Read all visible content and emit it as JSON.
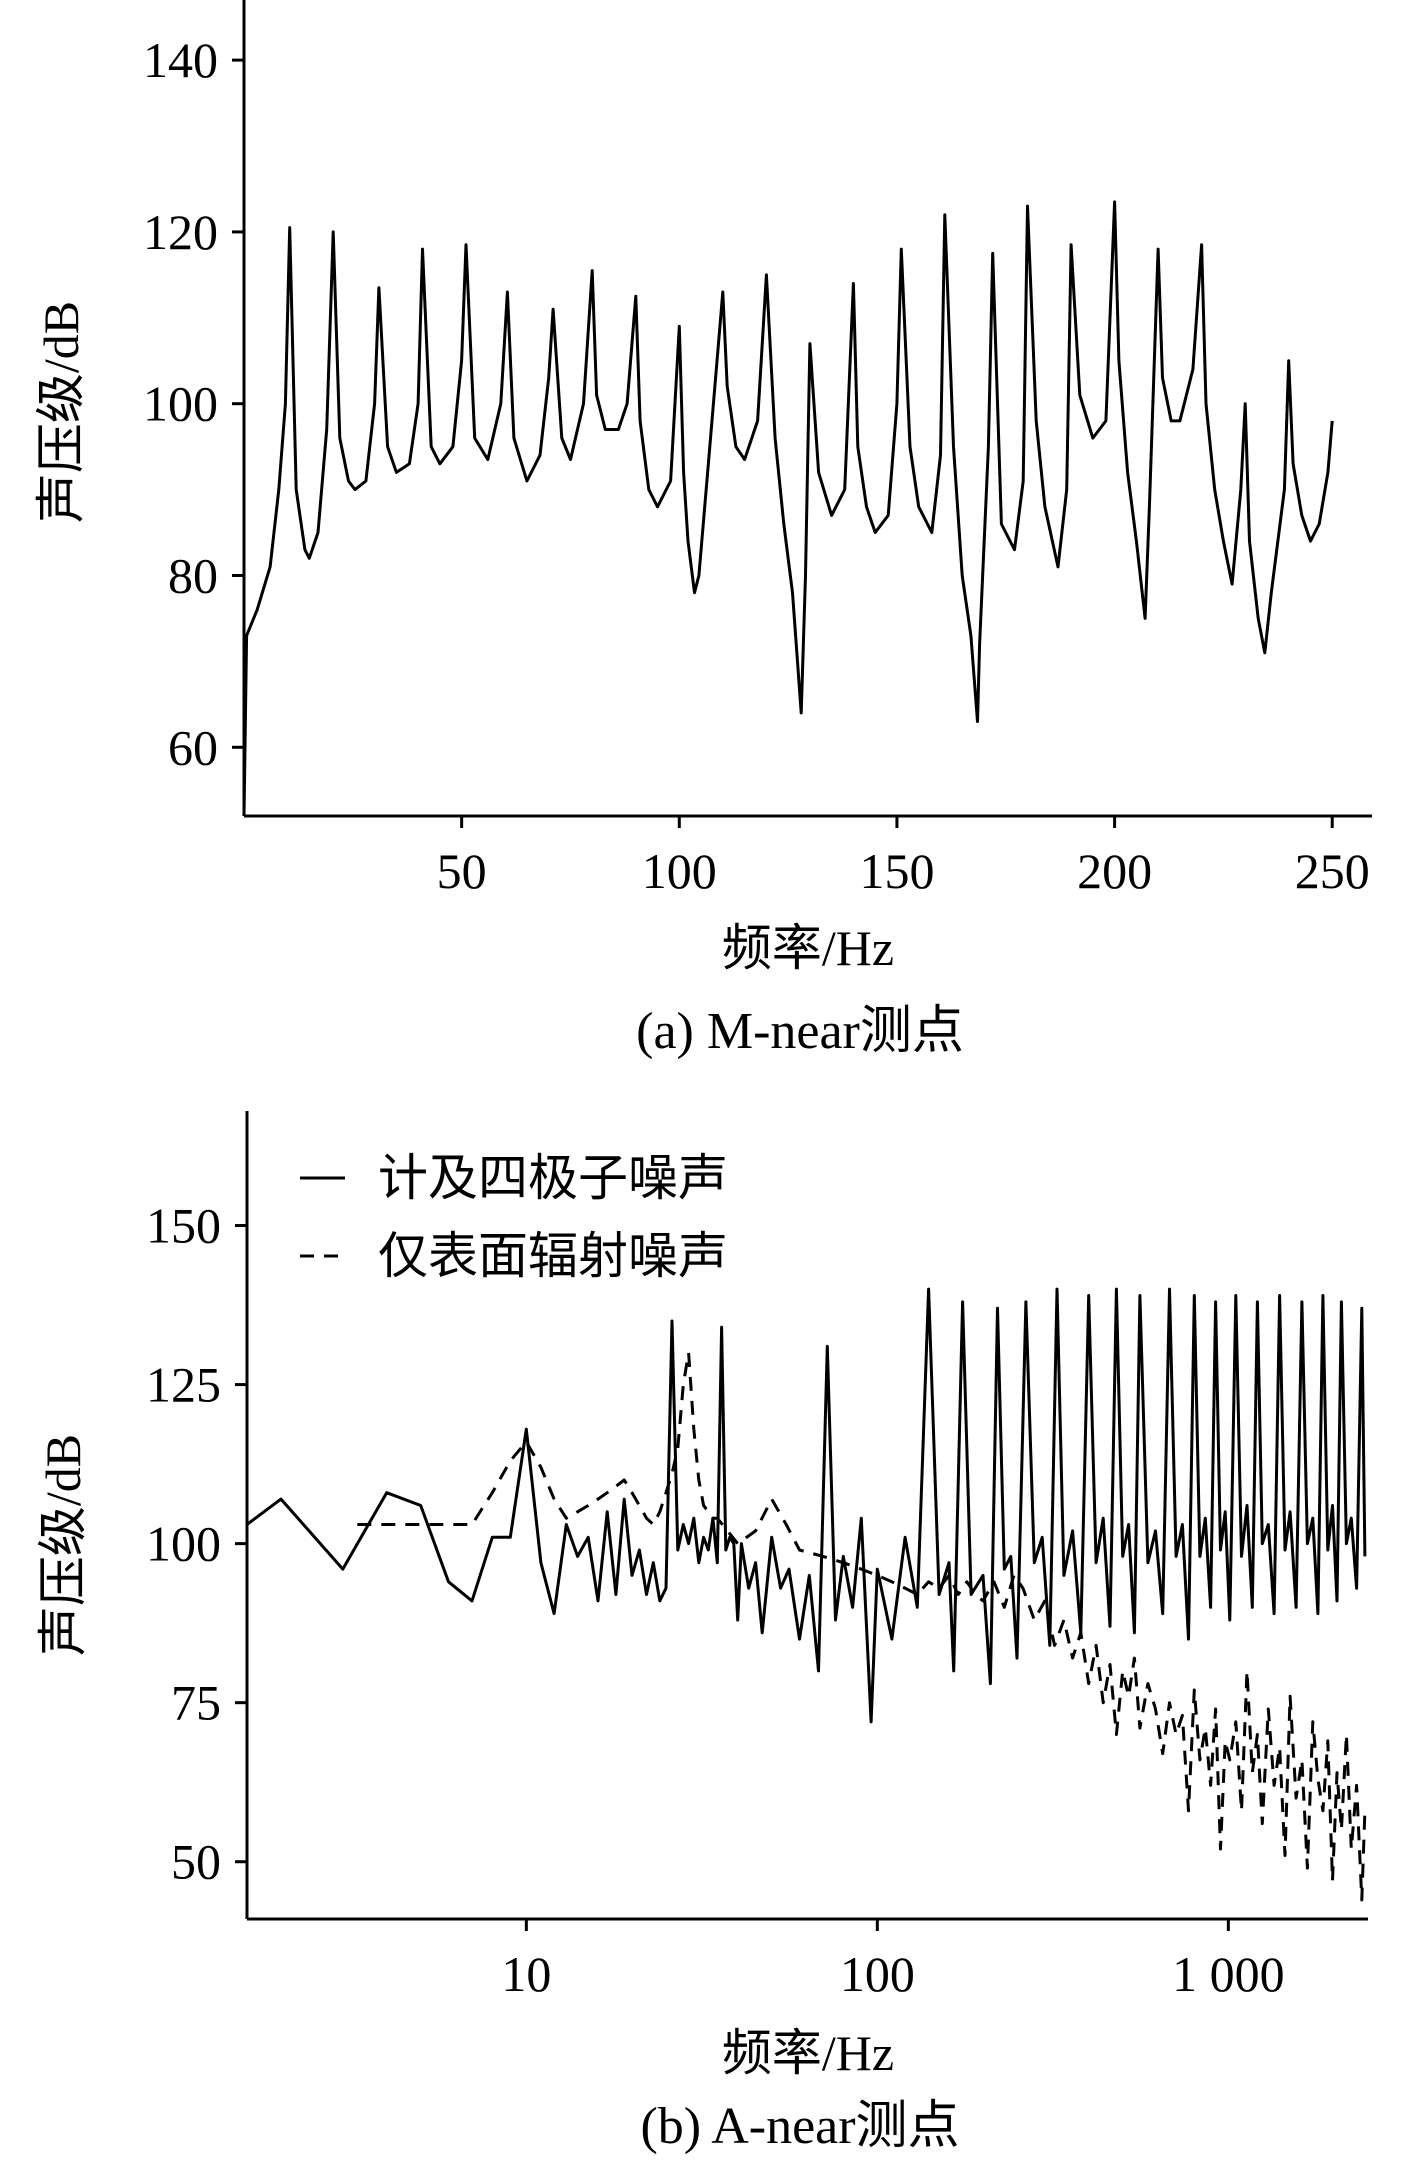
{
  "chart_data": [
    {
      "type": "line",
      "caption": "(a) M-near测点",
      "xlabel": "频率/Hz",
      "ylabel": "声压级/dB",
      "x_scale": "linear",
      "xlim": [
        0,
        255
      ],
      "ylim": [
        52,
        147
      ],
      "xticks": [
        50,
        100,
        150,
        200,
        250
      ],
      "yticks": [
        60,
        80,
        100,
        120,
        140
      ],
      "grid": false,
      "series": [
        {
          "style": "solid",
          "x": [
            0,
            0.6,
            3,
            6,
            8,
            9.5,
            10.5,
            12,
            14,
            15,
            17,
            19,
            20.5,
            22,
            24,
            25.5,
            28,
            30,
            31,
            33,
            35,
            38,
            40,
            41,
            43,
            45,
            48,
            50,
            51,
            53,
            56,
            59,
            60.5,
            62,
            65,
            68,
            70,
            71,
            73,
            75,
            78,
            80,
            81,
            83,
            86,
            88,
            90,
            91,
            93,
            95,
            98,
            100,
            101,
            102,
            103.5,
            104.5,
            107,
            110,
            111,
            113,
            115,
            118,
            120,
            122,
            124,
            126,
            128,
            129,
            130,
            132,
            135,
            138,
            140,
            141,
            143,
            145,
            148,
            150,
            151,
            153,
            155,
            158,
            160,
            161,
            163,
            165,
            167,
            168.5,
            169,
            171,
            172,
            174,
            177,
            179,
            180,
            182,
            184,
            187,
            189,
            190,
            192,
            195,
            198,
            200,
            201,
            203,
            205,
            207,
            208,
            210,
            211,
            213,
            215,
            218,
            220,
            221,
            223,
            225,
            227,
            229,
            230,
            231,
            233,
            234.5,
            236,
            239,
            240,
            241,
            243,
            245,
            247,
            249,
            250
          ],
          "y": [
            52,
            73,
            76,
            81,
            90,
            100,
            120.5,
            90,
            83,
            82,
            85,
            97,
            120,
            96,
            91,
            90,
            91,
            100,
            113.5,
            95,
            92,
            93,
            100,
            118,
            95,
            93,
            95,
            105,
            118.5,
            96,
            93.5,
            100,
            113,
            96,
            91,
            94,
            103,
            111,
            96,
            93.5,
            100,
            115.5,
            101,
            97,
            97,
            100,
            112.5,
            98,
            90,
            88,
            91,
            109,
            92,
            84,
            78,
            80,
            95,
            113,
            102,
            95,
            93.5,
            98,
            115,
            96,
            86,
            78,
            64,
            80,
            107,
            92,
            87,
            90,
            114,
            95,
            88,
            85,
            87,
            100,
            118,
            95,
            88,
            85,
            94,
            122,
            95,
            80,
            73,
            63,
            72,
            95,
            117.5,
            86,
            83,
            91,
            123,
            98,
            88,
            81,
            90,
            118.5,
            101,
            96,
            98,
            123.5,
            105,
            92,
            84,
            75,
            88,
            118,
            103,
            98,
            98,
            104,
            118.5,
            100,
            90,
            84,
            79,
            90,
            100,
            84,
            75,
            71,
            78,
            90,
            105,
            93,
            87,
            84,
            86,
            92,
            98
          ]
        }
      ]
    },
    {
      "type": "line",
      "caption": "(b) A-near测点",
      "xlabel": "频率/Hz",
      "ylabel": "声压级/dB",
      "x_scale": "log",
      "xlim": [
        1.6,
        2500
      ],
      "ylim": [
        41,
        168
      ],
      "xticks": [
        10,
        100,
        1000
      ],
      "xtick_labels": [
        "10",
        "100",
        "1 000"
      ],
      "yticks": [
        50,
        75,
        100,
        125,
        150
      ],
      "grid": false,
      "legend_position": "top-left",
      "series": [
        {
          "name": "计及四极子噪声",
          "style": "solid",
          "x": [
            1.6,
            2,
            3,
            4,
            5,
            6,
            7,
            8,
            9,
            10,
            11,
            12,
            13,
            14,
            15,
            16,
            17,
            18,
            19,
            20,
            21,
            22,
            23,
            24,
            25,
            26,
            27,
            28,
            29,
            30,
            31,
            32,
            33,
            34,
            35,
            36,
            37,
            38,
            39,
            40,
            41,
            43,
            45,
            47,
            50,
            53,
            56,
            60,
            64,
            68,
            72,
            76,
            80,
            85,
            90,
            96,
            100,
            110,
            120,
            130,
            140,
            150,
            160,
            165,
            175,
            185,
            200,
            210,
            220,
            230,
            240,
            250,
            265,
            280,
            295,
            310,
            325,
            340,
            360,
            380,
            400,
            420,
            440,
            460,
            480,
            500,
            520,
            540,
            560,
            590,
            620,
            650,
            680,
            710,
            740,
            770,
            800,
            830,
            860,
            890,
            920,
            950,
            980,
            1010,
            1050,
            1090,
            1130,
            1170,
            1210,
            1250,
            1300,
            1350,
            1400,
            1450,
            1500,
            1560,
            1620,
            1680,
            1740,
            1800,
            1860,
            1920,
            1980,
            2040,
            2100,
            2170,
            2240,
            2320,
            2400,
            2450
          ],
          "y": [
            103,
            107,
            96,
            108,
            106,
            94,
            91,
            101,
            101,
            118,
            97,
            89,
            103,
            98,
            101,
            91,
            105,
            92,
            107,
            95,
            99,
            92,
            97,
            91,
            93,
            135,
            99,
            103,
            100,
            104,
            97,
            101,
            99,
            104,
            97,
            134,
            99,
            101,
            100,
            88,
            100,
            93,
            97,
            86,
            101,
            93,
            96,
            85,
            95,
            80,
            131,
            88,
            98,
            90,
            104,
            72,
            96,
            85,
            101,
            90,
            140,
            92,
            97,
            80,
            138,
            92,
            95,
            78,
            137,
            96,
            98,
            82,
            138,
            97,
            101,
            84,
            140,
            95,
            102,
            86,
            139,
            97,
            104,
            87,
            140,
            98,
            103,
            86,
            139,
            97,
            102,
            89,
            140,
            98,
            103,
            85,
            139,
            98,
            104,
            90,
            138,
            99,
            105,
            88,
            139,
            98,
            106,
            90,
            138,
            100,
            103,
            89,
            139,
            99,
            105,
            90,
            138,
            100,
            104,
            89,
            139,
            99,
            106,
            91,
            138,
            100,
            104,
            93,
            137,
            98
          ]
        },
        {
          "name": "仅表面辐射噪声",
          "style": "dashed",
          "x": [
            3.3,
            4,
            5,
            6,
            7,
            8,
            9,
            10,
            11,
            12,
            13,
            14,
            15,
            16,
            17,
            18,
            19,
            20,
            21,
            22,
            23,
            24,
            25,
            26,
            27,
            28,
            29,
            30,
            31,
            32,
            33,
            34,
            35,
            40,
            45,
            50,
            55,
            60,
            70,
            80,
            90,
            100,
            110,
            120,
            130,
            140,
            150,
            160,
            170,
            180,
            190,
            200,
            215,
            230,
            245,
            260,
            280,
            300,
            320,
            340,
            360,
            380,
            400,
            420,
            440,
            460,
            480,
            500,
            520,
            540,
            560,
            590,
            620,
            650,
            680,
            710,
            740,
            770,
            800,
            830,
            860,
            890,
            920,
            950,
            980,
            1010,
            1050,
            1090,
            1130,
            1170,
            1210,
            1250,
            1300,
            1350,
            1400,
            1450,
            1500,
            1560,
            1620,
            1680,
            1740,
            1800,
            1860,
            1920,
            1980,
            2040,
            2100,
            2170,
            2240,
            2320,
            2400,
            2450
          ],
          "y": [
            103,
            103,
            103,
            103,
            103,
            108,
            113,
            116,
            112,
            107,
            104,
            105,
            106,
            107,
            108,
            109,
            110,
            108,
            106,
            104,
            103,
            105,
            108,
            111,
            115,
            125,
            130,
            118,
            110,
            106,
            105,
            104,
            104,
            100,
            102,
            107,
            103,
            99,
            98,
            97,
            96,
            95,
            94,
            93,
            92,
            94,
            93,
            95,
            92,
            94,
            92,
            91,
            94,
            90,
            95,
            93,
            88,
            91,
            84,
            88,
            82,
            86,
            78,
            84,
            75,
            81,
            70,
            80,
            76,
            82,
            71,
            78,
            74,
            67,
            75,
            70,
            73,
            58,
            77,
            66,
            71,
            62,
            74,
            52,
            69,
            66,
            72,
            58,
            80,
            64,
            70,
            56,
            74,
            62,
            68,
            51,
            76,
            60,
            66,
            49,
            72,
            63,
            58,
            69,
            47,
            64,
            55,
            70,
            52,
            62,
            44,
            58
          ]
        }
      ]
    }
  ]
}
